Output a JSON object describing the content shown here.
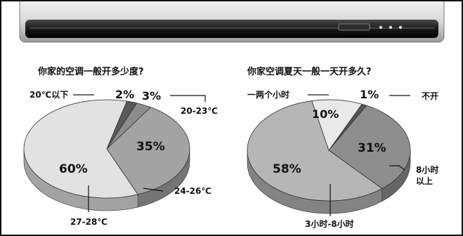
{
  "chart_data": [
    {
      "type": "pie",
      "title": "你家的空调一般开多少度?",
      "slices": [
        {
          "label": "20℃以下",
          "value": 2,
          "value_label": "2%",
          "color": "#5a5a5a"
        },
        {
          "label": "20-23℃",
          "value": 3,
          "value_label": "3%",
          "color": "#8c8c8c"
        },
        {
          "label": "24-26℃",
          "value": 35,
          "value_label": "35%",
          "color": "#a3a3a3"
        },
        {
          "label": "27-28℃",
          "value": 60,
          "value_label": "60%",
          "color": "#e2e2e2"
        }
      ]
    },
    {
      "type": "pie",
      "title": "你家空调夏天一般一天开多久?",
      "slices": [
        {
          "label": "不开",
          "value": 1,
          "value_label": "1%",
          "color": "#555555"
        },
        {
          "label": "8小时以上",
          "value": 31,
          "value_label": "31%",
          "color": "#8e8e8e"
        },
        {
          "label": "3小时-8小时",
          "value": 58,
          "value_label": "58%",
          "color": "#b6b6b6"
        },
        {
          "label": "一两个小时",
          "value": 10,
          "value_label": "10%",
          "color": "#e9e9e9"
        }
      ]
    }
  ]
}
